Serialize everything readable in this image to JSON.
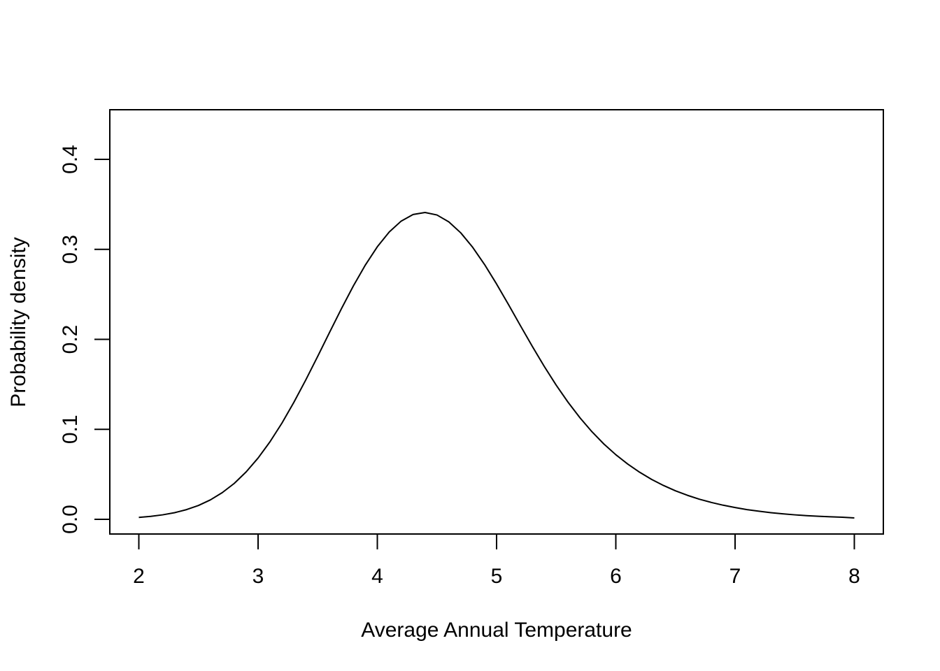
{
  "chart_data": {
    "type": "line",
    "title": "",
    "xlabel": "Average Annual Temperature",
    "ylabel": "Probability density",
    "xlim": [
      2,
      8
    ],
    "ylim": [
      0,
      0.44
    ],
    "x_ticks": [
      2,
      3,
      4,
      5,
      6,
      7,
      8
    ],
    "x_tick_labels": [
      "2",
      "3",
      "4",
      "5",
      "6",
      "7",
      "8"
    ],
    "y_ticks": [
      0,
      0.1,
      0.2,
      0.3,
      0.4
    ],
    "y_tick_labels": [
      "0.0",
      "0.1",
      "0.2",
      "0.3",
      "0.4"
    ],
    "grid": false,
    "legend": "none",
    "line_color": "#000000",
    "series": [
      {
        "x": [
          2.0,
          2.1,
          2.2,
          2.3,
          2.4,
          2.5,
          2.6,
          2.7,
          2.8,
          2.9,
          3.0,
          3.1,
          3.2,
          3.3,
          3.4,
          3.5,
          3.6,
          3.7,
          3.8,
          3.9,
          4.0,
          4.1,
          4.2,
          4.3,
          4.4,
          4.5,
          4.6,
          4.7,
          4.8,
          4.9,
          5.0,
          5.1,
          5.2,
          5.3,
          5.4,
          5.5,
          5.6,
          5.7,
          5.8,
          5.9,
          6.0,
          6.1,
          6.2,
          6.3,
          6.4,
          6.5,
          6.6,
          6.7,
          6.8,
          6.9,
          7.0,
          7.1,
          7.2,
          7.3,
          7.4,
          7.5,
          7.6,
          7.7,
          7.8,
          7.9,
          8.0
        ],
        "y": [
          0.0021,
          0.0033,
          0.005,
          0.0074,
          0.0108,
          0.0154,
          0.0216,
          0.0297,
          0.0399,
          0.0527,
          0.0681,
          0.0862,
          0.1069,
          0.13,
          0.1549,
          0.1811,
          0.2079,
          0.2343,
          0.2596,
          0.2827,
          0.3029,
          0.3193,
          0.3314,
          0.3387,
          0.341,
          0.3382,
          0.3305,
          0.3183,
          0.3022,
          0.283,
          0.2615,
          0.2386,
          0.2152,
          0.1921,
          0.1699,
          0.1491,
          0.13,
          0.1127,
          0.0973,
          0.0837,
          0.0718,
          0.0614,
          0.0523,
          0.0444,
          0.0376,
          0.0317,
          0.0267,
          0.0224,
          0.0188,
          0.0157,
          0.0131,
          0.0108,
          0.009,
          0.0074,
          0.0061,
          0.005,
          0.0041,
          0.0034,
          0.0028,
          0.0023,
          0.0016
        ]
      }
    ]
  }
}
